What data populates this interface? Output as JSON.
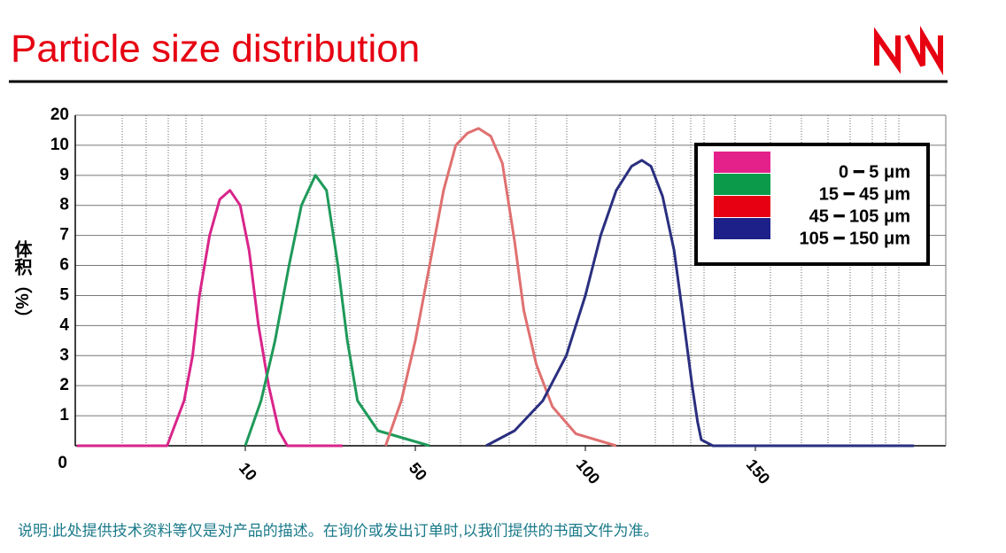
{
  "chart_data": {
    "type": "line",
    "title": "Particle size distribution",
    "y_label": "体积（%）",
    "note": "说明:此处提供技术资料等仅是对产品的描述。在询价或发出订单时,以我们提供的书面文件为准。",
    "xlim": [
      0,
      200
    ],
    "xticks": [
      10,
      50,
      100,
      150
    ],
    "ylim": [
      0,
      20
    ],
    "yticks": [
      0,
      1,
      2,
      3,
      4,
      5,
      6,
      7,
      8,
      9,
      10,
      20
    ],
    "grid": true,
    "legend": "upper right",
    "series": [
      {
        "name": "0 ━ 5 μm",
        "color": "#d9258a",
        "legend_color": "#e4218b",
        "x": [
          0.1,
          5.4,
          6.4,
          6.9,
          7.3,
          7.9,
          8.5,
          9.1,
          9.7,
          10.9,
          13.1,
          15.5,
          17.9,
          19.9,
          32.9
        ],
        "values": [
          0,
          0,
          1.5,
          3,
          5,
          7,
          8.2,
          8.5,
          8,
          6.5,
          4,
          2,
          0.5,
          0,
          0
        ]
      },
      {
        "name": "15 ━ 45 μm",
        "color": "#1f9a5a",
        "legend_color": "#0a9a4a",
        "x": [
          10,
          13.7,
          17,
          20.3,
          23.2,
          26.5,
          29.1,
          31.8,
          34,
          36.4,
          41.2,
          54.2
        ],
        "values": [
          0,
          1.5,
          3.5,
          6,
          8,
          9,
          8.5,
          6,
          3.5,
          1.5,
          0.5,
          0
        ]
      },
      {
        "name": "45 ━ 105 μm",
        "color": "#e07070",
        "legend_color": "#e60012",
        "x": [
          43,
          46.7,
          50,
          54.2,
          58.3,
          61.9,
          65.3,
          68.6,
          72.2,
          75.6,
          79.2,
          81.9,
          85.6,
          90.3,
          97.2,
          109.1
        ],
        "values": [
          0,
          1.5,
          3.5,
          6,
          8.5,
          10,
          14,
          15.6,
          13,
          9.4,
          6.8,
          4.5,
          2.7,
          1.3,
          0.4,
          0
        ]
      },
      {
        "name": "105 ━ 150 μm",
        "color": "#2a2f7f",
        "legend_color": "#1d2088",
        "x": [
          70.8,
          79.2,
          87.5,
          94.4,
          100,
          104.5,
          109.1,
          113.6,
          116.6,
          119.3,
          122.7,
          126.1,
          129.1,
          131.4,
          133,
          134.1,
          137.5,
          196.6
        ],
        "values": [
          0,
          0.5,
          1.5,
          3,
          5,
          7,
          8.5,
          9.3,
          9.5,
          9.3,
          8.3,
          6.5,
          4,
          2,
          0.8,
          0.2,
          0,
          0
        ]
      }
    ]
  }
}
